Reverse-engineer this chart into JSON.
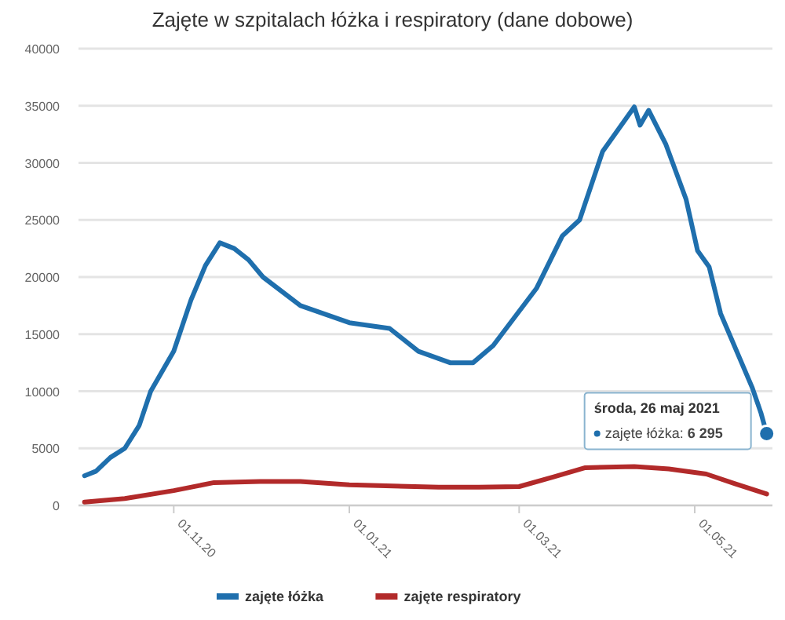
{
  "chart_data": {
    "type": "line",
    "title": "Zajęte w szpitalach łóżka i respiratory (dane dobowe)",
    "xlim": [
      "2020-09-30",
      "2021-05-28"
    ],
    "xticks": [
      {
        "value": "2020-11-01",
        "label": "01.11.20"
      },
      {
        "value": "2021-01-01",
        "label": "01.01.21"
      },
      {
        "value": "2021-03-01",
        "label": "01.03.21"
      },
      {
        "value": "2021-05-01",
        "label": "01.05.21"
      }
    ],
    "ylim": [
      0,
      40000
    ],
    "yticks": [
      0,
      5000,
      10000,
      15000,
      20000,
      25000,
      30000,
      35000,
      40000
    ],
    "grid": "y",
    "legend": "bottom",
    "marker": "none",
    "line_style": "solid",
    "series": [
      {
        "name": "zajęte łóżka",
        "color": "#1f6fad",
        "x": [
          "2020-10-01",
          "2020-10-05",
          "2020-10-10",
          "2020-10-15",
          "2020-10-20",
          "2020-10-24",
          "2020-11-01",
          "2020-11-07",
          "2020-11-12",
          "2020-11-17",
          "2020-11-22",
          "2020-11-27",
          "2020-12-02",
          "2020-12-15",
          "2021-01-01",
          "2021-01-15",
          "2021-01-25",
          "2021-02-05",
          "2021-02-13",
          "2021-02-20",
          "2021-03-07",
          "2021-03-16",
          "2021-03-22",
          "2021-03-30",
          "2021-04-10",
          "2021-04-12",
          "2021-04-15",
          "2021-04-21",
          "2021-04-28",
          "2021-05-02",
          "2021-05-06",
          "2021-05-10",
          "2021-05-21",
          "2021-05-24",
          "2021-05-26"
        ],
        "values": [
          2600,
          3000,
          4200,
          5000,
          7000,
          10000,
          13500,
          18000,
          21000,
          23000,
          22500,
          21500,
          20000,
          17500,
          16000,
          15500,
          13500,
          12500,
          12500,
          14000,
          19000,
          23600,
          25000,
          31000,
          34900,
          33300,
          34600,
          31600,
          26800,
          22300,
          20900,
          16800,
          10300,
          8100,
          6295
        ]
      },
      {
        "name": "zajęte respiratory",
        "color": "#b22a2a",
        "x": [
          "2020-10-01",
          "2020-10-15",
          "2020-11-01",
          "2020-11-15",
          "2020-12-01",
          "2020-12-15",
          "2021-01-01",
          "2021-02-01",
          "2021-02-15",
          "2021-03-01",
          "2021-03-13",
          "2021-03-24",
          "2021-04-10",
          "2021-04-22",
          "2021-05-05",
          "2021-05-15",
          "2021-05-26"
        ],
        "values": [
          300,
          600,
          1300,
          2000,
          2100,
          2100,
          1800,
          1600,
          1600,
          1650,
          2500,
          3300,
          3400,
          3200,
          2750,
          1900,
          1000
        ]
      }
    ],
    "annotations": [
      "środa, 26 maj 2021",
      "zajęte łóżka: 6 295"
    ]
  }
}
